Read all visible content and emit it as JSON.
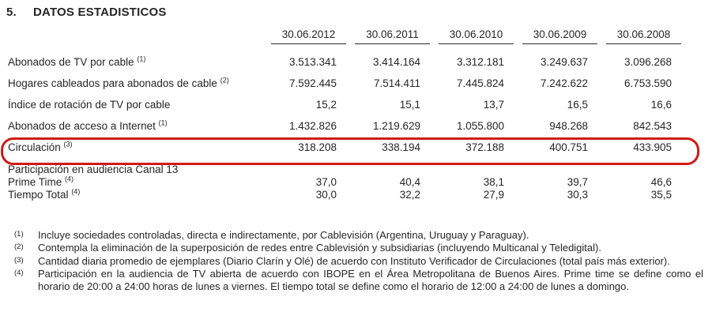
{
  "page": {
    "section_number": "5.",
    "title": "DATOS ESTADISTICOS"
  },
  "table": {
    "columns": [
      "30.06.2012",
      "30.06.2011",
      "30.06.2010",
      "30.06.2009",
      "30.06.2008"
    ],
    "rows": [
      {
        "label": "Abonados de TV por cable",
        "ref": "(1)",
        "values": [
          "3.513.341",
          "3.414.164",
          "3.312.181",
          "3.249.637",
          "3.096.268"
        ]
      },
      {
        "label": "Hogares cableados para abonados de cable",
        "ref": "(2)",
        "values": [
          "7.592.445",
          "7.514.411",
          "7.445.824",
          "7.242.622",
          "6.753.590"
        ]
      },
      {
        "label": "Índice de rotación de TV por cable",
        "ref": "",
        "values": [
          "15,2",
          "15,1",
          "13,7",
          "16,5",
          "16,6"
        ]
      },
      {
        "label": "Abonados de acceso a Internet",
        "ref": "(1)",
        "values": [
          "1.432.826",
          "1.219.629",
          "1.055.800",
          "948.268",
          "842.543"
        ]
      },
      {
        "label": "Circulación",
        "ref": "(3)",
        "values": [
          "318.208",
          "338.194",
          "372.188",
          "400.751",
          "433.905"
        ]
      }
    ],
    "audience_section": {
      "header": "Participación en audiencia Canal 13",
      "rows": [
        {
          "label": "Prime Time",
          "ref": "(4)",
          "values": [
            "37,0",
            "40,4",
            "38,1",
            "39,7",
            "46,6"
          ]
        },
        {
          "label": "Tiempo Total",
          "ref": "(4)",
          "values": [
            "30,0",
            "32,2",
            "27,9",
            "30,3",
            "35,5"
          ]
        }
      ]
    }
  },
  "highlight": {
    "highlighted_row": "Circulación",
    "color": "#cf1b15"
  },
  "footnotes": [
    {
      "marker": "(1)",
      "text": "Incluye sociedades controladas, directa e indirectamente, por Cablevisión (Argentina, Uruguay y Paraguay)."
    },
    {
      "marker": "(2)",
      "text": "Contempla la eliminación de la superposición de redes entre Cablevisión y subsidiarias (incluyendo Multicanal y Teledigital)."
    },
    {
      "marker": "(3)",
      "text": "Cantidad diaria promedio de ejemplares (Diario Clarín y Olé) de acuerdo con Instituto Verificador de Circulaciones (total país más exterior)."
    },
    {
      "marker": "(4)",
      "text": "Participación en la audiencia de TV abierta de acuerdo con IBOPE en el Área Metropolitana de Buenos Aires. Prime time se define como el horario de 20:00 a 24:00 horas de lunes a viernes. El tiempo total se define como el horario de 12:00 a 24:00 de lunes a domingo."
    }
  ]
}
